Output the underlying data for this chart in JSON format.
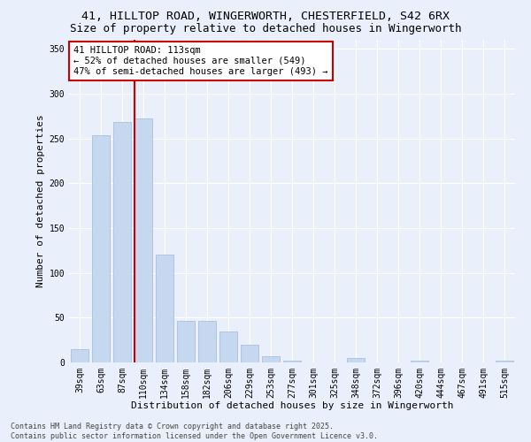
{
  "title_line1": "41, HILLTOP ROAD, WINGERWORTH, CHESTERFIELD, S42 6RX",
  "title_line2": "Size of property relative to detached houses in Wingerworth",
  "xlabel": "Distribution of detached houses by size in Wingerworth",
  "ylabel": "Number of detached properties",
  "categories": [
    "39sqm",
    "63sqm",
    "87sqm",
    "110sqm",
    "134sqm",
    "158sqm",
    "182sqm",
    "206sqm",
    "229sqm",
    "253sqm",
    "277sqm",
    "301sqm",
    "325sqm",
    "348sqm",
    "372sqm",
    "396sqm",
    "420sqm",
    "444sqm",
    "467sqm",
    "491sqm",
    "515sqm"
  ],
  "values": [
    15,
    253,
    268,
    272,
    120,
    46,
    46,
    35,
    20,
    7,
    2,
    0,
    0,
    5,
    0,
    0,
    2,
    0,
    0,
    0,
    2
  ],
  "bar_color": "#c5d8f0",
  "bar_edge_color": "#a0b8d8",
  "vline_position": 2.58,
  "vline_color": "#cc0000",
  "annotation_text_line1": "41 HILLTOP ROAD: 113sqm",
  "annotation_text_line2": "← 52% of detached houses are smaller (549)",
  "annotation_text_line3": "47% of semi-detached houses are larger (493) →",
  "annotation_box_color": "#ffffff",
  "annotation_box_edge_color": "#cc0000",
  "annotation_fontsize": 7.5,
  "ylim": [
    0,
    360
  ],
  "yticks": [
    0,
    50,
    100,
    150,
    200,
    250,
    300,
    350
  ],
  "background_color": "#eaf0fb",
  "grid_color": "#ffffff",
  "footer_text": "Contains HM Land Registry data © Crown copyright and database right 2025.\nContains public sector information licensed under the Open Government Licence v3.0.",
  "title_fontsize": 9.5,
  "subtitle_fontsize": 9,
  "axis_label_fontsize": 8,
  "tick_fontsize": 7,
  "footer_fontsize": 6
}
